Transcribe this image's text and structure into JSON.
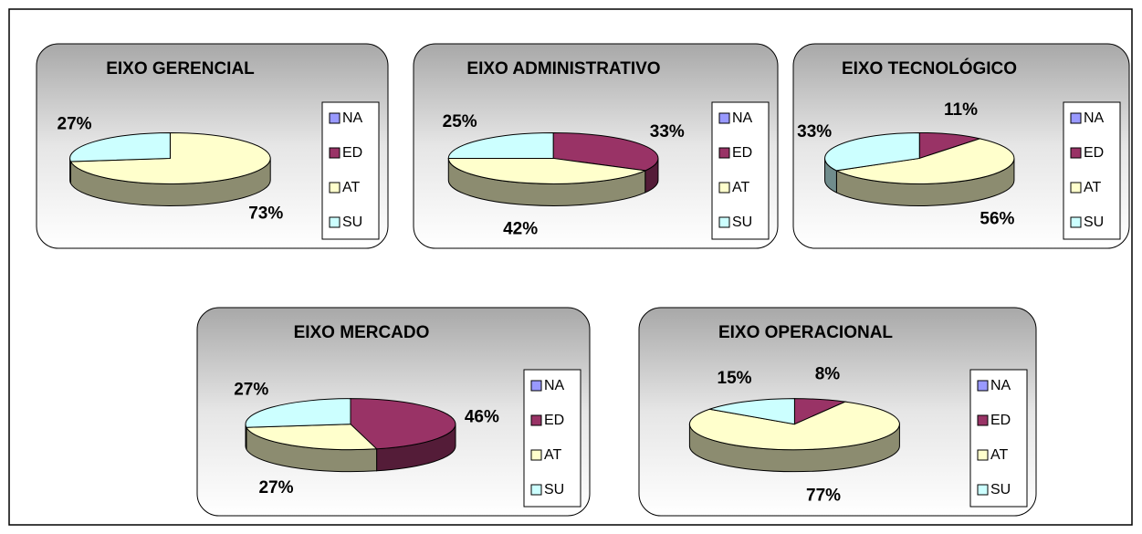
{
  "chart_data": [
    {
      "type": "pie",
      "title": "EIXO GERENCIAL",
      "categories": [
        "NA",
        "ED",
        "AT",
        "SU"
      ],
      "values": [
        0,
        0,
        73,
        27
      ],
      "value_labels": [
        null,
        null,
        "73%",
        "27%"
      ],
      "colors": [
        "#9999ff",
        "#993366",
        "#ffffcc",
        "#ccffff"
      ]
    },
    {
      "type": "pie",
      "title": "EIXO ADMINISTRATIVO",
      "categories": [
        "NA",
        "ED",
        "AT",
        "SU"
      ],
      "values": [
        0,
        33,
        42,
        25
      ],
      "value_labels": [
        null,
        "33%",
        "42%",
        "25%"
      ],
      "colors": [
        "#9999ff",
        "#993366",
        "#ffffcc",
        "#ccffff"
      ]
    },
    {
      "type": "pie",
      "title": "EIXO TECNOLÓGICO",
      "categories": [
        "NA",
        "ED",
        "AT",
        "SU"
      ],
      "values": [
        0,
        11,
        56,
        33
      ],
      "value_labels": [
        null,
        "11%",
        "56%",
        "33%"
      ],
      "colors": [
        "#9999ff",
        "#993366",
        "#ffffcc",
        "#ccffff"
      ]
    },
    {
      "type": "pie",
      "title": "EIXO MERCADO",
      "categories": [
        "NA",
        "ED",
        "AT",
        "SU"
      ],
      "values": [
        0,
        46,
        27,
        27
      ],
      "value_labels": [
        null,
        "46%",
        "27%",
        "27%"
      ],
      "colors": [
        "#9999ff",
        "#993366",
        "#ffffcc",
        "#ccffff"
      ]
    },
    {
      "type": "pie",
      "title": "EIXO OPERACIONAL",
      "categories": [
        "NA",
        "ED",
        "AT",
        "SU"
      ],
      "values": [
        0,
        8,
        77,
        15
      ],
      "value_labels": [
        null,
        "8%",
        "77%",
        "15%"
      ],
      "colors": [
        "#9999ff",
        "#993366",
        "#ffffcc",
        "#ccffff"
      ]
    }
  ]
}
